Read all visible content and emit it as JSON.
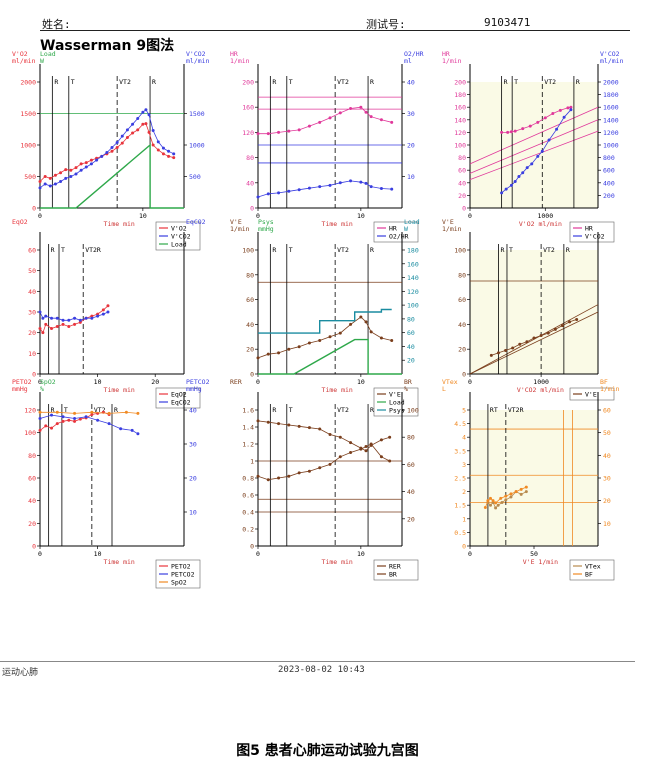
{
  "header": {
    "name_label": "姓名:",
    "test_label": "测试号:",
    "test_value": "9103471",
    "title": "Wasserman 9图法"
  },
  "footer": {
    "left": "运动心肺",
    "timestamp": "2023-08-02   10:43"
  },
  "caption": "图5 患者心肺运动试验九宫图",
  "colors": {
    "red": "#e8343c",
    "blue": "#3a3ee0",
    "green": "#2ea84a",
    "pink": "#e0389a",
    "brown": "#7a3e1c",
    "orange": "#f08a24",
    "tan": "#b88a4e",
    "teal": "#1a8ca0",
    "darkgreen": "#0e6a2c",
    "shade": "#fafae6"
  },
  "chart_data": [
    {
      "type": "line",
      "panel": 1,
      "xlabel": "Time  min",
      "left_axis_label": [
        "V'O2",
        "ml/min",
        "Load",
        "W"
      ],
      "right_axis_label": [
        "V'CO2",
        "ml/min"
      ],
      "xlim": [
        0,
        14
      ],
      "x_ticks": [
        0,
        10
      ],
      "ylim": [
        0,
        2000
      ],
      "y_ticks": [
        0,
        500,
        1000,
        1500,
        2000
      ],
      "right_y_ticks": [
        500,
        1000,
        1500
      ],
      "load_y_ticks": [
        150,
        100,
        50
      ],
      "markers": [
        "R",
        "T",
        "VT2",
        "R"
      ],
      "marker_x": [
        1.2,
        2.8,
        7.5,
        10.7
      ],
      "series": [
        {
          "name": "V'O2",
          "x": [
            0,
            0.5,
            1,
            1.5,
            2,
            2.5,
            3,
            3.5,
            4,
            4.5,
            5,
            5.5,
            6,
            6.5,
            7,
            7.5,
            8,
            8.5,
            9,
            9.5,
            10,
            10.3,
            10.6,
            11,
            11.5,
            12,
            12.5,
            13
          ],
          "y": [
            420,
            500,
            470,
            520,
            560,
            610,
            600,
            640,
            700,
            720,
            760,
            790,
            820,
            860,
            900,
            960,
            1030,
            1120,
            1190,
            1240,
            1330,
            1340,
            1200,
            1000,
            920,
            860,
            820,
            800
          ]
        },
        {
          "name": "V'CO2",
          "x": [
            0,
            0.5,
            1,
            1.5,
            2,
            2.5,
            3,
            3.5,
            4,
            4.5,
            5,
            5.5,
            6,
            6.5,
            7,
            7.5,
            8,
            8.5,
            9,
            9.5,
            10,
            10.3,
            10.6,
            11,
            11.5,
            12,
            12.5,
            13
          ],
          "y": [
            320,
            380,
            350,
            380,
            420,
            470,
            500,
            540,
            600,
            650,
            700,
            760,
            820,
            880,
            960,
            1040,
            1140,
            1240,
            1330,
            1420,
            1520,
            1560,
            1480,
            1230,
            1050,
            950,
            900,
            860
          ]
        },
        {
          "name": "Load",
          "x": [
            0,
            2.2,
            3.5,
            10.7,
            10.7,
            14
          ],
          "y": [
            0,
            0,
            0,
            1000,
            0,
            0
          ]
        }
      ],
      "reference_line": 1500
    },
    {
      "type": "line",
      "panel": 2,
      "xlabel": "Time  min",
      "left_axis_label": [
        "HR",
        "1/min"
      ],
      "right_axis_label": [
        "O2/HR",
        "ml"
      ],
      "xlim": [
        0,
        14
      ],
      "x_ticks": [
        0,
        10
      ],
      "ylim": [
        0,
        200
      ],
      "y_ticks": [
        0,
        40,
        80,
        120,
        160,
        200
      ],
      "right_ylim": [
        0,
        40
      ],
      "right_y_ticks": [
        10,
        20,
        30,
        40
      ],
      "markers": [
        "R",
        "T",
        "VT2",
        "R"
      ],
      "marker_x": [
        1.2,
        2.8,
        7.5,
        10.7
      ],
      "series": [
        {
          "name": "HR",
          "x": [
            0,
            1,
            2,
            3,
            4,
            5,
            6,
            7,
            8,
            9,
            10,
            10.5,
            11,
            12,
            13
          ],
          "y": [
            118,
            118,
            120,
            122,
            124,
            130,
            136,
            143,
            151,
            158,
            160,
            152,
            145,
            140,
            136
          ]
        },
        {
          "name": "O2/HR",
          "x": [
            0,
            1,
            2,
            3,
            4,
            5,
            6,
            7,
            8,
            9,
            10,
            10.5,
            11,
            12,
            13
          ],
          "y": [
            3.5,
            4.5,
            4.8,
            5.3,
            5.8,
            6.3,
            6.8,
            7.2,
            8.0,
            8.6,
            8.2,
            7.8,
            6.8,
            6.2,
            6.0
          ]
        }
      ],
      "hlines_left": [
        176,
        157
      ],
      "hlines_right": [
        20,
        14.3
      ]
    },
    {
      "type": "scatter",
      "panel": 3,
      "xlabel": "V'O2  ml/min",
      "left_axis_label": [
        "HR",
        "1/min"
      ],
      "right_axis_label": [
        "V'CO2",
        "ml/min"
      ],
      "xlim": [
        0,
        1700
      ],
      "x_ticks": [
        0,
        1000
      ],
      "ylim": [
        0,
        200
      ],
      "y_ticks": [
        0,
        20,
        40,
        60,
        80,
        100,
        120,
        140,
        160,
        180,
        200
      ],
      "right_ylim": [
        0,
        2000
      ],
      "right_y_ticks": [
        200,
        400,
        600,
        800,
        1000,
        1200,
        1400,
        1600,
        1800,
        2000
      ],
      "markers": [
        "R",
        "T",
        "VT2",
        "R"
      ],
      "marker_x": [
        420,
        560,
        960,
        1380
      ],
      "series": [
        {
          "name": "HR",
          "x": [
            420,
            500,
            550,
            600,
            700,
            800,
            900,
            1000,
            1100,
            1200,
            1300,
            1340
          ],
          "y": [
            120,
            120,
            121,
            122,
            126,
            130,
            136,
            143,
            150,
            155,
            159,
            160
          ]
        },
        {
          "name": "V'CO2",
          "x": [
            420,
            480,
            550,
            600,
            650,
            700,
            760,
            820,
            900,
            960,
            1050,
            1150,
            1250,
            1340
          ],
          "y": [
            240,
            300,
            360,
            420,
            500,
            560,
            640,
            700,
            820,
            900,
            1080,
            1250,
            1440,
            1560
          ]
        }
      ],
      "diagonal_lines": [
        {
          "x": [
            0,
            1700
          ],
          "y": [
            55,
            140
          ]
        },
        {
          "x": [
            0,
            1700
          ],
          "y": [
            45,
            122
          ]
        },
        {
          "x": [
            0,
            1700
          ],
          "y": [
            70,
            160
          ]
        }
      ]
    },
    {
      "type": "line",
      "panel": 4,
      "xlabel": "Time  min",
      "left_axis_label": [
        "EqO2"
      ],
      "right_axis_label": [
        "EqCO2"
      ],
      "xlim": [
        0,
        25
      ],
      "x_ticks": [
        0,
        10,
        20
      ],
      "ylim": [
        0,
        60
      ],
      "y_ticks": [
        0,
        10,
        20,
        30,
        40,
        50,
        60
      ],
      "markers": [
        "R",
        "T",
        "VT2R"
      ],
      "marker_x": [
        1.5,
        3.3,
        7.5
      ],
      "series": [
        {
          "name": "EqO2",
          "x": [
            0,
            0.5,
            1,
            2,
            3,
            4,
            5,
            6,
            7,
            8,
            9,
            10,
            11,
            11.8
          ],
          "y": [
            22,
            20,
            24,
            22,
            23,
            24,
            23,
            24,
            25,
            27,
            28,
            29,
            31,
            33
          ]
        },
        {
          "name": "EqCO2",
          "x": [
            0,
            0.5,
            1,
            2,
            3,
            4,
            5,
            6,
            7,
            8,
            9,
            10,
            11,
            11.8
          ],
          "y": [
            30,
            27,
            28,
            27,
            27,
            26,
            26,
            27,
            26,
            27,
            27,
            28,
            29,
            30
          ]
        }
      ]
    },
    {
      "type": "line",
      "panel": 5,
      "xlabel": "Time  min",
      "left_axis_label": [
        "V'E",
        "1/min",
        "Psys",
        "mmHg"
      ],
      "right_axis_label": [
        "Load",
        "W"
      ],
      "xlim": [
        0,
        14
      ],
      "x_ticks": [
        0,
        10
      ],
      "ylim": [
        0,
        100
      ],
      "y_ticks": [
        0,
        20,
        40,
        60,
        80,
        100
      ],
      "psys_ticks": [
        100,
        150,
        200,
        250,
        300
      ],
      "right_ylim": [
        0,
        180
      ],
      "right_y_ticks": [
        20,
        40,
        60,
        80,
        100,
        120,
        140,
        160,
        180
      ],
      "markers": [
        "R",
        "T",
        "VT2",
        "R"
      ],
      "marker_x": [
        1.2,
        2.8,
        7.5,
        10.7
      ],
      "series": [
        {
          "name": "V'E",
          "x": [
            0,
            1,
            2,
            3,
            4,
            5,
            6,
            7,
            8,
            9,
            10,
            10.5,
            11,
            12,
            13
          ],
          "y": [
            13,
            16,
            17,
            20,
            22,
            25,
            27,
            30,
            33,
            40,
            46,
            42,
            34,
            29,
            27
          ]
        },
        {
          "name": "Load",
          "x": [
            0,
            3.5,
            9.4,
            10.7,
            10.7,
            14
          ],
          "y": [
            0,
            0,
            50,
            50,
            0,
            0
          ]
        },
        {
          "name": "Psys",
          "x": [
            0,
            3.5,
            6,
            6,
            9.4,
            9.4,
            12,
            12,
            13
          ],
          "y": [
            33,
            33,
            33,
            43,
            43,
            50,
            50,
            52,
            52
          ]
        }
      ],
      "hlines_left": [
        74
      ]
    },
    {
      "type": "scatter",
      "panel": 6,
      "xlabel": "V'CO2  ml/min",
      "left_axis_label": [
        "V'E",
        "1/min"
      ],
      "xlim": [
        0,
        1800
      ],
      "x_ticks": [
        0,
        1000
      ],
      "ylim": [
        0,
        100
      ],
      "y_ticks": [
        0,
        20,
        40,
        60,
        80,
        100
      ],
      "markers": [
        "R",
        "T",
        "VT2",
        "R"
      ],
      "marker_x": [
        400,
        520,
        1000,
        1320
      ],
      "series": [
        {
          "name": "V'E",
          "x": [
            300,
            400,
            500,
            600,
            700,
            800,
            900,
            1000,
            1100,
            1200,
            1300,
            1400,
            1500
          ],
          "y": [
            15,
            17,
            19,
            21,
            24,
            26,
            29,
            31,
            33,
            36,
            39,
            42,
            44
          ]
        }
      ],
      "diagonal_lines": [
        {
          "x": [
            0,
            1800
          ],
          "y": [
            0,
            56
          ]
        },
        {
          "x": [
            0,
            1800
          ],
          "y": [
            0,
            50
          ]
        }
      ],
      "hlines_left": [
        75
      ]
    },
    {
      "type": "line",
      "panel": 7,
      "xlabel": "Time  min",
      "left_axis_label": [
        "PETO2",
        "mmHg",
        "SpO2",
        "%"
      ],
      "right_axis_label": [
        "PETCO2",
        "mmHg"
      ],
      "xlim": [
        0,
        25
      ],
      "x_ticks": [
        0,
        10
      ],
      "ylim": [
        0,
        120
      ],
      "y_ticks": [
        0,
        20,
        40,
        60,
        80,
        100,
        120
      ],
      "spo2_ticks": [
        100,
        80,
        60,
        40,
        20
      ],
      "right_ylim": [
        0,
        40
      ],
      "right_y_ticks": [
        10,
        20,
        30,
        40
      ],
      "markers": [
        "R",
        "T",
        "VT2",
        "R"
      ],
      "marker_x": [
        1.5,
        3.8,
        9,
        12.5
      ],
      "series": [
        {
          "name": "PETO2",
          "x": [
            0,
            1,
            2,
            3,
            4,
            5,
            6,
            7,
            8,
            9,
            10,
            11,
            12
          ],
          "y": [
            102,
            106,
            104,
            108,
            110,
            111,
            110,
            112,
            113,
            116,
            117,
            118,
            116
          ]
        },
        {
          "name": "PETCO2",
          "x": [
            0,
            2,
            4,
            6,
            8,
            10,
            12,
            14,
            16,
            17
          ],
          "y": [
            37.5,
            38.5,
            38,
            37.5,
            38,
            37,
            36,
            34.5,
            34,
            33
          ]
        },
        {
          "name": "SpO2",
          "x": [
            0,
            3,
            6,
            9,
            12,
            15,
            17
          ],
          "y": [
            118,
            118,
            117,
            118,
            117,
            118,
            117
          ]
        }
      ]
    },
    {
      "type": "line",
      "panel": 8,
      "xlabel": "Time  min",
      "left_axis_label": [
        "RER"
      ],
      "right_axis_label": [
        "BR",
        "%"
      ],
      "xlim": [
        0,
        14
      ],
      "x_ticks": [
        0,
        10
      ],
      "ylim": [
        0,
        1.6
      ],
      "y_ticks": [
        0,
        0.2,
        0.4,
        0.6,
        0.8,
        1.0,
        1.2,
        1.4,
        1.6
      ],
      "right_ylim": [
        0,
        100
      ],
      "right_y_ticks": [
        20,
        40,
        60,
        80,
        100
      ],
      "markers": [
        "R",
        "T",
        "VT2",
        "R"
      ],
      "marker_x": [
        1.2,
        2.8,
        7.5,
        10.7
      ],
      "series": [
        {
          "name": "RER",
          "x": [
            0,
            1,
            2,
            3,
            4,
            5,
            6,
            7,
            8,
            9,
            10,
            10.5,
            11,
            12,
            12.8
          ],
          "y": [
            0.82,
            0.78,
            0.8,
            0.82,
            0.86,
            0.88,
            0.92,
            0.96,
            1.05,
            1.1,
            1.14,
            1.17,
            1.2,
            1.05,
            1.0
          ]
        },
        {
          "name": "BR",
          "x": [
            0,
            1,
            2,
            3,
            4,
            5,
            6,
            7,
            8,
            9,
            10,
            10.5,
            11,
            12,
            12.8
          ],
          "y": [
            92,
            91,
            90,
            89,
            88,
            87,
            86,
            82,
            80,
            76,
            72,
            70,
            74,
            78,
            80
          ]
        }
      ],
      "hlines_left": [
        1.0,
        0.55,
        0.4
      ]
    },
    {
      "type": "scatter",
      "panel": 9,
      "xlabel": "V'E  1/min",
      "left_axis_label": [
        "VTex",
        "L"
      ],
      "right_axis_label": [
        "BF",
        "1/min"
      ],
      "xlim": [
        0,
        100
      ],
      "x_ticks": [
        0,
        50
      ],
      "ylim": [
        0,
        5.0
      ],
      "y_ticks": [
        0,
        0.5,
        1.0,
        1.5,
        2.0,
        2.5,
        3.0,
        3.5,
        4.0,
        4.5,
        5.0
      ],
      "right_ylim": [
        0,
        60
      ],
      "right_y_ticks": [
        10,
        20,
        30,
        40,
        50,
        60
      ],
      "markers": [
        "RT",
        "VT2R"
      ],
      "marker_x": [
        14,
        28
      ],
      "series": [
        {
          "name": "VTex",
          "x": [
            14,
            16,
            18,
            20,
            22,
            25,
            28,
            32,
            36,
            40,
            44
          ],
          "y": [
            1.6,
            1.5,
            1.6,
            1.4,
            1.5,
            1.6,
            1.7,
            1.8,
            2.0,
            1.9,
            2.0
          ]
        },
        {
          "name": "BF",
          "x": [
            12,
            14,
            16,
            18,
            20,
            24,
            28,
            32,
            36,
            40,
            44
          ],
          "y": [
            17,
            20,
            21,
            20,
            19,
            21,
            22,
            23,
            24,
            25,
            26
          ]
        }
      ],
      "hlines_left": [
        4.3,
        2.6,
        1.6
      ],
      "vlines_x": [
        73,
        80
      ]
    }
  ]
}
